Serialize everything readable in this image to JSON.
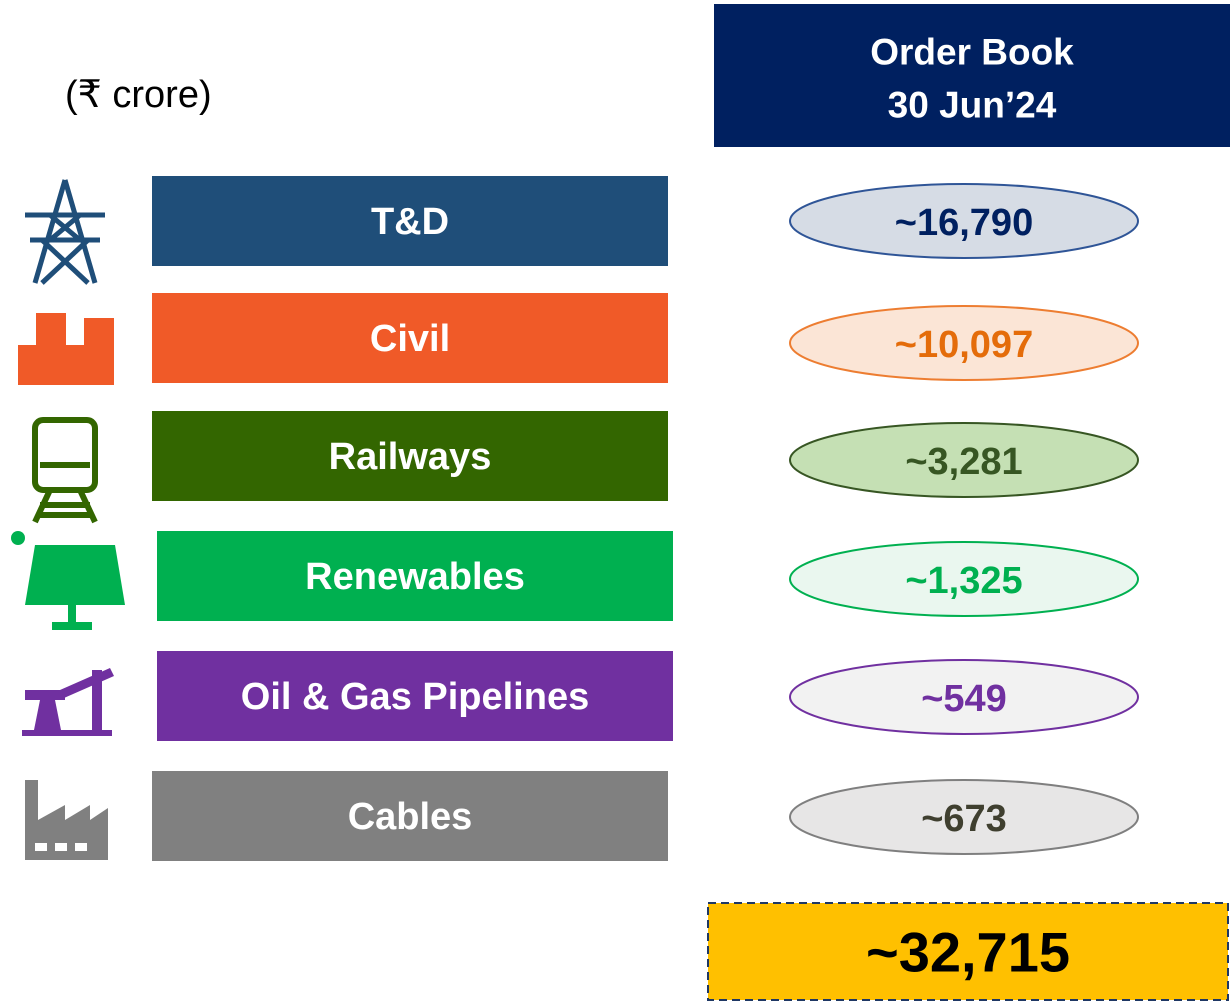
{
  "unit": "(₹ crore)",
  "header": {
    "lines": [
      "Order Book",
      "30 Jun’24"
    ]
  },
  "rows": [
    {
      "label": "T&D",
      "value": "~16,790",
      "bar": "#1f4e79",
      "fill": "#d6dce5",
      "stroke": "#2f5597",
      "text": "#002060"
    },
    {
      "label": "Civil",
      "value": "~10,097",
      "bar": "#f05a28",
      "fill": "#fbe5d6",
      "stroke": "#ed7d31",
      "text": "#e46c0a"
    },
    {
      "label": "Railways",
      "value": "~3,281",
      "bar": "#336600",
      "fill": "#c5e0b4",
      "stroke": "#375623",
      "text": "#375623"
    },
    {
      "label": "Renewables",
      "value": "~1,325",
      "bar": "#00b050",
      "fill": "#eaf7ef",
      "stroke": "#00b050",
      "text": "#00b050"
    },
    {
      "label": "Oil & Gas Pipelines",
      "value": "~549",
      "bar": "#7030a0",
      "fill": "#f2f2f2",
      "stroke": "#7030a0",
      "text": "#7030a0"
    },
    {
      "label": "Cables",
      "value": "~673",
      "bar": "#808080",
      "fill": "#e7e6e6",
      "stroke": "#7f7f7f",
      "text": "#3f3f2f"
    }
  ],
  "total": "~32,715"
}
